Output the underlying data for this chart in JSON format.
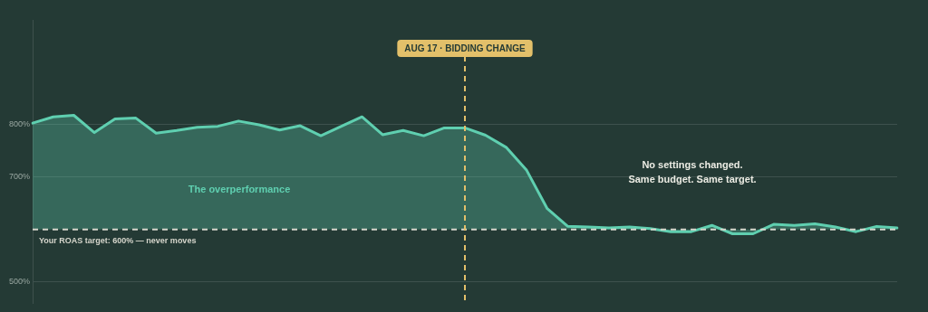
{
  "chart_data": {
    "type": "area",
    "categories": [
      null,
      null,
      null,
      null,
      null,
      null,
      null,
      null,
      null,
      null,
      null,
      null,
      null,
      null,
      null,
      null,
      null,
      null,
      null,
      null,
      null,
      null,
      null,
      null,
      null,
      null,
      null,
      null,
      null,
      null,
      null,
      null,
      null,
      null,
      null,
      null,
      null,
      null,
      null,
      null,
      null,
      null,
      null
    ],
    "series": [
      {
        "color": "#5fcfb0",
        "values": [
          803,
          815,
          818,
          785,
          811,
          813,
          784,
          789,
          795,
          797,
          807,
          800,
          790,
          798,
          779,
          797,
          815,
          781,
          789,
          779,
          794,
          794,
          780,
          757,
          713,
          640,
          606,
          605,
          603,
          605,
          602,
          596,
          596,
          608,
          592,
          592,
          610,
          608,
          611,
          605,
          596,
          606,
          603
        ]
      }
    ],
    "ylim": [
      460,
      1000
    ],
    "yticks": [
      {
        "value": 500,
        "label": "500%"
      },
      {
        "value": 700,
        "label": "700%"
      },
      {
        "value": 800,
        "label": "800%"
      }
    ],
    "grid": "y",
    "legend": false,
    "marker": "none",
    "line_style": "solid",
    "tick_labels": "y",
    "ref_lines": [
      {
        "axis": "y",
        "value": 600,
        "label": "Your ROAS target: 600% — never moves",
        "color": "#d6d6cc",
        "line_style": "dashed"
      }
    ],
    "annotations": [
      "The overperformance",
      "No settings changed.",
      "Same budget. Same target.",
      "AUG 17 · BIDDING CHANGE"
    ]
  }
}
